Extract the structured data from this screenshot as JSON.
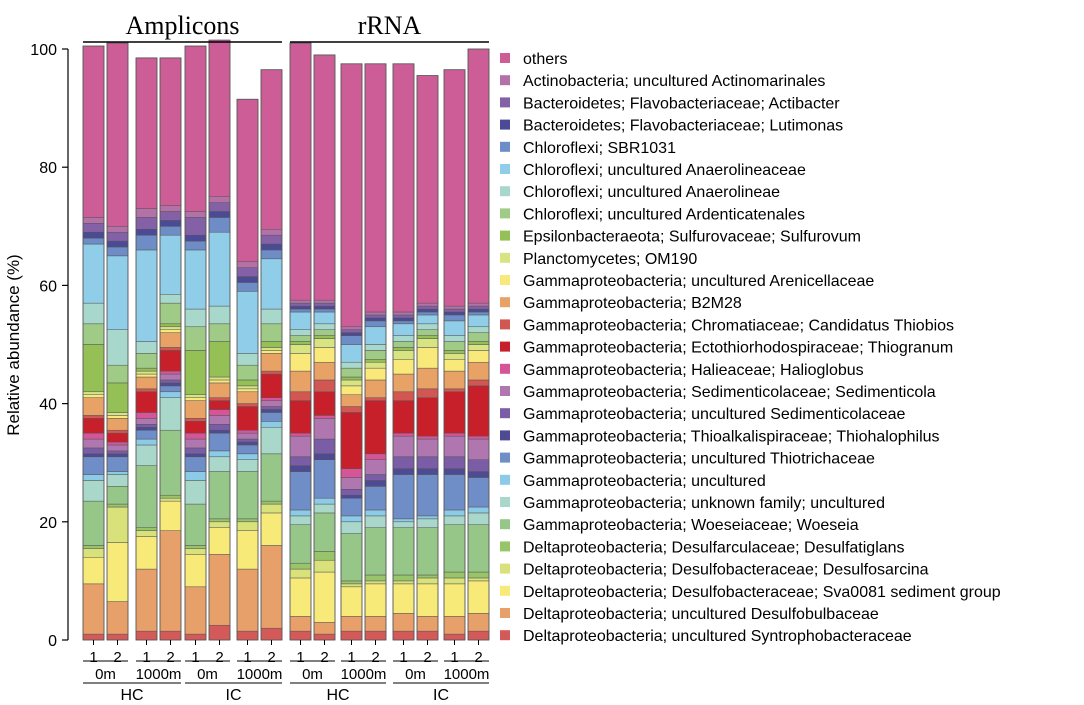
{
  "chart_data": {
    "type": "bar",
    "stacked": true,
    "ylabel": "Relative abundance (%)",
    "ylim": [
      0,
      100
    ],
    "yticks": [
      0,
      20,
      40,
      60,
      80,
      100
    ],
    "groups": [
      {
        "label": "Amplicons",
        "sections": [
          {
            "label": "HC",
            "depths": [
              {
                "label": "0m",
                "reps": [
                  "1",
                  "2"
                ]
              },
              {
                "label": "1000m",
                "reps": [
                  "1",
                  "2"
                ]
              }
            ]
          },
          {
            "label": "IC",
            "depths": [
              {
                "label": "0m",
                "reps": [
                  "1",
                  "2"
                ]
              },
              {
                "label": "1000m",
                "reps": [
                  "1",
                  "2"
                ]
              }
            ]
          }
        ]
      },
      {
        "label": "rRNA",
        "sections": [
          {
            "label": "HC",
            "depths": [
              {
                "label": "0m",
                "reps": [
                  "1",
                  "2"
                ]
              },
              {
                "label": "1000m",
                "reps": [
                  "1",
                  "2"
                ]
              }
            ]
          },
          {
            "label": "IC",
            "depths": [
              {
                "label": "0m",
                "reps": [
                  "1",
                  "2"
                ]
              },
              {
                "label": "1000m",
                "reps": [
                  "1",
                  "2"
                ]
              }
            ]
          }
        ]
      }
    ],
    "bars": [
      "Amplicons HC 0m 1",
      "Amplicons HC 0m 2",
      "Amplicons HC 1000m 1",
      "Amplicons HC 1000m 2",
      "Amplicons IC 0m 1",
      "Amplicons IC 0m 2",
      "Amplicons IC 1000m 1",
      "Amplicons IC 1000m 2",
      "rRNA HC 0m 1",
      "rRNA HC 0m 2",
      "rRNA HC 1000m 1",
      "rRNA HC 1000m 2",
      "rRNA IC 0m 1",
      "rRNA IC 0m 2",
      "rRNA IC 1000m 1",
      "rRNA IC 1000m 2"
    ],
    "series": [
      {
        "name": "Deltaproteobacteria; uncultured Syntrophobacteraceae",
        "color": "#d45a5a",
        "values": [
          1.0,
          1.0,
          1.5,
          1.5,
          1.0,
          2.5,
          1.5,
          2.0,
          1.5,
          1.0,
          1.5,
          1.5,
          1.5,
          1.5,
          1.0,
          1.5
        ]
      },
      {
        "name": "Deltaproteobacteria; uncultured Desulfobulbaceae",
        "color": "#e8a06a",
        "values": [
          8.5,
          5.5,
          10.5,
          17.0,
          8.0,
          12.0,
          10.5,
          14.0,
          2.5,
          2.0,
          2.5,
          2.5,
          3.0,
          2.5,
          3.0,
          3.0
        ]
      },
      {
        "name": "Deltaproteobacteria; Desulfobacteraceae; Sva0081 sediment group",
        "color": "#f8ea78",
        "values": [
          4.5,
          10.0,
          5.5,
          5.0,
          5.5,
          4.5,
          6.5,
          5.5,
          6.5,
          8.5,
          5.0,
          5.5,
          5.0,
          5.5,
          5.5,
          5.5
        ]
      },
      {
        "name": "Deltaproteobacteria; Desulfobacteraceae; Desulfosarcina",
        "color": "#d9e27a",
        "values": [
          1.5,
          6.0,
          1.0,
          0.5,
          1.0,
          1.0,
          1.5,
          1.5,
          1.5,
          2.0,
          0.5,
          0.5,
          0.5,
          1.0,
          1.0,
          0.5
        ]
      },
      {
        "name": "Deltaproteobacteria; Desulfarculaceae; Desulfatiglans",
        "color": "#98c46a",
        "values": [
          0.5,
          0.5,
          0.5,
          0.5,
          0.5,
          0.5,
          0.5,
          0.5,
          1.0,
          1.5,
          0.5,
          1.0,
          1.0,
          0.5,
          1.0,
          1.0
        ]
      },
      {
        "name": "Gammaproteobacteria; Woeseiaceae; Woeseia",
        "color": "#96c789",
        "values": [
          7.5,
          3.0,
          10.5,
          11.0,
          7.0,
          8.0,
          8.0,
          8.0,
          6.5,
          6.5,
          8.0,
          8.0,
          8.0,
          8.0,
          8.0,
          8.0
        ]
      },
      {
        "name": "Gammaproteobacteria; unknown family; uncultured",
        "color": "#a9d8cb",
        "values": [
          3.5,
          2.0,
          3.5,
          5.5,
          4.0,
          2.5,
          2.0,
          4.5,
          1.5,
          1.5,
          2.0,
          2.0,
          1.0,
          1.5,
          1.5,
          2.0
        ]
      },
      {
        "name": "Gammaproteobacteria; uncultured",
        "color": "#8ccbe7",
        "values": [
          1.0,
          0.5,
          1.0,
          1.0,
          1.5,
          1.0,
          1.0,
          1.0,
          1.0,
          1.0,
          1.0,
          1.0,
          0.5,
          0.5,
          1.0,
          1.0
        ]
      },
      {
        "name": "Gammaproteobacteria; uncultured Thiotrichaceae",
        "color": "#6f8dc7",
        "values": [
          3.0,
          2.5,
          1.5,
          1.0,
          2.5,
          3.0,
          1.5,
          1.5,
          6.5,
          6.5,
          3.0,
          4.0,
          7.5,
          7.0,
          6.0,
          5.0
        ]
      },
      {
        "name": "Gammaproteobacteria; Thioalkalispiraceae; Thiohalophilus",
        "color": "#4e4a94",
        "values": [
          0.5,
          0.5,
          0.5,
          0.5,
          0.5,
          0.5,
          0.5,
          0.5,
          1.0,
          1.0,
          0.5,
          1.0,
          1.0,
          1.0,
          1.0,
          1.0
        ]
      },
      {
        "name": "Gammaproteobacteria; uncultured Sedimenticolaceae",
        "color": "#7a5da6",
        "values": [
          1.0,
          0.5,
          0.5,
          0.5,
          1.0,
          1.0,
          0.5,
          0.5,
          1.5,
          2.5,
          1.0,
          1.0,
          2.0,
          2.0,
          2.0,
          2.0
        ]
      },
      {
        "name": "Gammaproteobacteria; Sedimenticolaceae; Sedimenticola",
        "color": "#b076b0",
        "values": [
          1.5,
          1.0,
          1.0,
          1.0,
          1.5,
          1.5,
          1.0,
          1.0,
          3.5,
          3.5,
          2.0,
          2.5,
          3.5,
          3.0,
          3.5,
          3.5
        ]
      },
      {
        "name": "Gammaproteobacteria; Halieaceae; Halioglobus",
        "color": "#d65599",
        "values": [
          1.0,
          0.5,
          1.0,
          0.5,
          1.0,
          1.0,
          0.5,
          0.5,
          0.5,
          0.5,
          1.5,
          1.0,
          0.5,
          0.5,
          0.5,
          0.5
        ]
      },
      {
        "name": "Gammaproteobacteria; Ectothiorhodospiraceae; Thiogranum",
        "color": "#c8202a",
        "values": [
          2.5,
          1.5,
          3.5,
          3.5,
          2.0,
          1.5,
          4.0,
          4.0,
          5.5,
          4.0,
          9.5,
          9.0,
          5.5,
          6.5,
          7.0,
          8.5
        ]
      },
      {
        "name": "Gammaproteobacteria; Chromatiaceae; Candidatus Thiobios",
        "color": "#d25752",
        "values": [
          0.5,
          0.5,
          0.5,
          0.5,
          0.5,
          0.5,
          0.5,
          0.5,
          1.5,
          2.0,
          1.0,
          0.5,
          1.5,
          1.5,
          0.5,
          1.0
        ]
      },
      {
        "name": "Gammaproteobacteria; B2M28",
        "color": "#e8a266",
        "values": [
          3.0,
          2.0,
          2.0,
          2.5,
          3.0,
          2.5,
          2.0,
          3.0,
          3.5,
          3.0,
          2.0,
          3.0,
          3.0,
          3.5,
          3.0,
          3.0
        ]
      },
      {
        "name": "Gammaproteobacteria; uncultured Arenicellaceae",
        "color": "#f8e97a",
        "values": [
          0.5,
          0.5,
          0.5,
          0.5,
          0.5,
          0.5,
          0.5,
          0.5,
          3.0,
          2.5,
          1.5,
          2.0,
          2.5,
          3.5,
          2.0,
          2.0
        ]
      },
      {
        "name": "Planctomycetes; OM190",
        "color": "#d8e482",
        "values": [
          0.5,
          0.5,
          0.5,
          0.5,
          0.5,
          0.5,
          0.5,
          0.5,
          1.5,
          1.5,
          1.0,
          1.0,
          1.5,
          1.5,
          1.0,
          1.0
        ]
      },
      {
        "name": "Epsilonbacteraeota; Sulfurovaceae; Sulfurovum",
        "color": "#95c055",
        "values": [
          8.0,
          5.0,
          0.5,
          0.5,
          7.5,
          6.0,
          1.0,
          1.0,
          0.5,
          0.5,
          0.5,
          0.5,
          0.5,
          0.5,
          0.5,
          0.5
        ]
      },
      {
        "name": "Chloroflexi; uncultured Ardenticatenales",
        "color": "#9fcb86",
        "values": [
          3.5,
          3.0,
          2.5,
          3.5,
          4.0,
          3.0,
          2.5,
          3.0,
          1.0,
          1.0,
          1.5,
          1.5,
          1.0,
          1.0,
          1.5,
          1.5
        ]
      },
      {
        "name": "Chloroflexi; uncultured Anaerolineae",
        "color": "#a8d8cb",
        "values": [
          3.5,
          6.0,
          2.0,
          1.5,
          3.0,
          3.0,
          2.0,
          2.5,
          1.0,
          1.0,
          1.0,
          1.0,
          1.0,
          1.0,
          1.0,
          1.0
        ]
      },
      {
        "name": "Chloroflexi; uncultured Anaerolineaceae",
        "color": "#8fcde9",
        "values": [
          10.0,
          12.5,
          15.5,
          10.0,
          10.0,
          12.5,
          10.5,
          8.5,
          3.0,
          2.0,
          3.0,
          3.0,
          2.0,
          1.5,
          2.5,
          2.0
        ]
      },
      {
        "name": "Chloroflexi; SBR1031",
        "color": "#6e8cc6",
        "values": [
          1.0,
          1.5,
          2.5,
          1.5,
          1.5,
          2.5,
          1.5,
          1.5,
          0.5,
          0.5,
          1.5,
          1.0,
          0.5,
          0.5,
          1.0,
          0.5
        ]
      },
      {
        "name": "Bacteroidetes; Flavobacteriaceae; Lutimonas",
        "color": "#4b4a96",
        "values": [
          1.0,
          1.0,
          1.0,
          1.0,
          1.0,
          1.0,
          1.0,
          1.0,
          0.5,
          0.5,
          0.5,
          0.5,
          0.5,
          0.5,
          0.5,
          0.5
        ]
      },
      {
        "name": "Bacteroidetes; Flavobacteriaceae; Actibacter",
        "color": "#8460a6",
        "values": [
          1.5,
          1.5,
          2.0,
          1.5,
          3.0,
          1.5,
          1.5,
          1.5,
          0.5,
          0.5,
          0.5,
          0.5,
          0.5,
          0.5,
          0.5,
          0.5
        ]
      },
      {
        "name": "Actinobacteria; uncultured Actinomarinales",
        "color": "#b371a8",
        "values": [
          1.0,
          1.0,
          1.5,
          1.0,
          1.0,
          1.0,
          1.0,
          1.0,
          0.5,
          0.5,
          0.5,
          0.5,
          0.5,
          0.5,
          0.5,
          0.5
        ]
      },
      {
        "name": "others",
        "color": "#cc5d96",
        "values": [
          29.0,
          31.0,
          25.5,
          25.0,
          28.0,
          26.5,
          27.5,
          27.0,
          43.5,
          41.5,
          44.5,
          42.0,
          42.0,
          38.5,
          40.0,
          43.0
        ]
      }
    ]
  }
}
